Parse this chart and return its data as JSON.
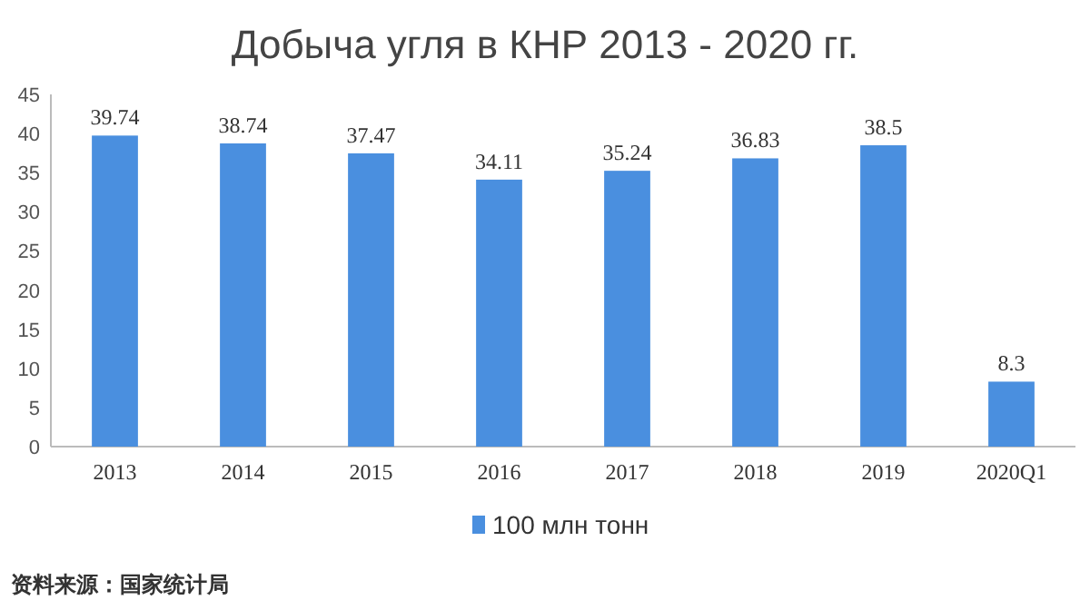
{
  "chart_data": {
    "type": "bar",
    "title": "Добыча угля в КНР 2013 - 2020 гг.",
    "categories": [
      "2013",
      "2014",
      "2015",
      "2016",
      "2017",
      "2018",
      "2019",
      "2020Q1"
    ],
    "series": [
      {
        "name": "100 млн тонн",
        "color": "#4a8fdf",
        "values": [
          39.74,
          38.74,
          37.47,
          34.11,
          35.24,
          36.83,
          38.5,
          8.3
        ]
      }
    ],
    "ylim": [
      0,
      45
    ],
    "yticks": [
      0,
      5,
      10,
      15,
      20,
      25,
      30,
      35,
      40,
      45
    ],
    "data_labels": true,
    "grid": false,
    "legend": "bottom",
    "annotations": [
      "资料来源：国家统计局"
    ]
  }
}
